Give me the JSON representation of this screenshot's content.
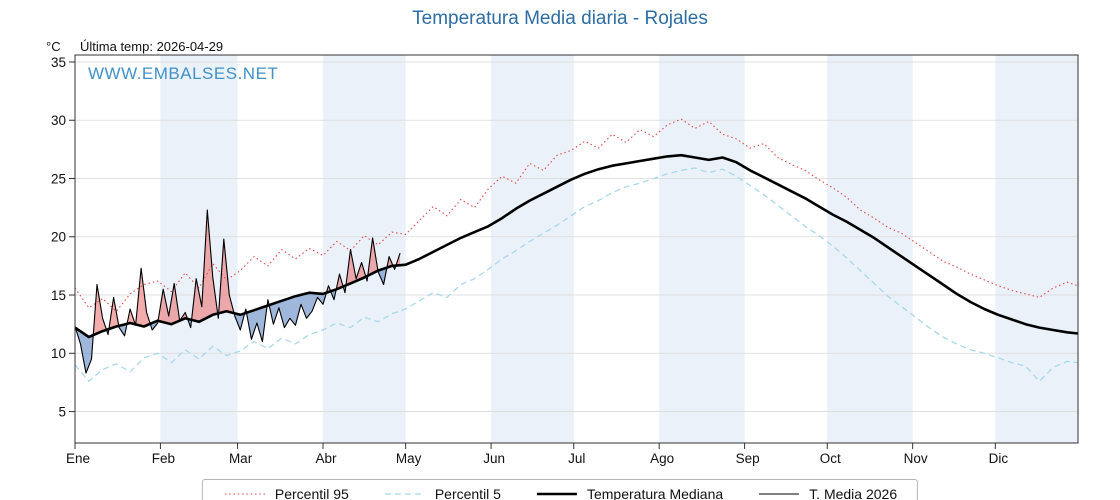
{
  "page": {
    "title": "Temperatura Media diaria - Rojales",
    "units_label": "°C",
    "last_temp_label": "Última temp: 2026-04-29",
    "watermark": "WWW.EMBALSES.NET"
  },
  "colors": {
    "title": "#2e6da4",
    "watermark": "#4191c9",
    "band": "#eaf1f8",
    "grid": "#d9d9d9",
    "axis": "#333333",
    "fill_above": "rgba(235,105,105,0.55)",
    "fill_below": "rgba(95,135,195,0.60)"
  },
  "chart_data": {
    "type": "line",
    "title": "Temperatura Media diaria - Rojales",
    "subtitle": "Última temp: 2026-04-29",
    "xlabel": "",
    "ylabel": "°C",
    "grid": true,
    "legend_position": "bottom",
    "x_axis": {
      "tick_labels": [
        "Ene",
        "Feb",
        "Mar",
        "Abr",
        "May",
        "Jun",
        "Jul",
        "Ago",
        "Sep",
        "Oct",
        "Nov",
        "Dic"
      ],
      "month_start_days": [
        1,
        32,
        60,
        91,
        121,
        152,
        182,
        213,
        244,
        274,
        305,
        335
      ],
      "range_days": [
        1,
        365
      ]
    },
    "y_axis": {
      "ticks": [
        5,
        10,
        15,
        20,
        25,
        30,
        35
      ],
      "units": "°C",
      "display_range": [
        2.3,
        35.6
      ]
    },
    "legend": [
      {
        "label": "Percentil 95",
        "color": "#e04848",
        "style": "dotted",
        "width": 1.1
      },
      {
        "label": "Percentil 5",
        "color": "#a8d8ea",
        "style": "dashed",
        "width": 1.3
      },
      {
        "label": "Temperatura Mediana",
        "color": "#000000",
        "style": "solid",
        "width": 2.6
      },
      {
        "label": "T. Media 2026",
        "color": "#000000",
        "style": "solid",
        "width": 1.1
      }
    ],
    "series": [
      {
        "name": "Percentil 95",
        "color": "#e04848",
        "style": "dotted",
        "width": 1.1,
        "x": [
          1,
          6,
          11,
          16,
          21,
          26,
          31,
          36,
          41,
          46,
          51,
          56,
          61,
          66,
          71,
          76,
          81,
          86,
          91,
          96,
          101,
          106,
          111,
          116,
          121,
          126,
          131,
          136,
          141,
          146,
          151,
          156,
          161,
          166,
          171,
          176,
          181,
          186,
          191,
          196,
          201,
          206,
          211,
          216,
          221,
          226,
          231,
          236,
          241,
          246,
          251,
          256,
          261,
          266,
          271,
          276,
          281,
          286,
          291,
          296,
          301,
          306,
          311,
          316,
          321,
          326,
          331,
          336,
          341,
          346,
          351,
          356,
          361,
          365
        ],
        "values": [
          15.6,
          13.9,
          14.7,
          13.6,
          15.1,
          15.9,
          16.2,
          15.3,
          16.9,
          15.6,
          17.7,
          16.3,
          17.1,
          18.3,
          17.5,
          18.9,
          18.1,
          19.0,
          18.4,
          19.6,
          18.8,
          20.1,
          19.3,
          20.4,
          20.2,
          21.4,
          22.6,
          21.8,
          23.2,
          22.5,
          24.1,
          25.2,
          24.6,
          26.3,
          25.7,
          27.0,
          27.4,
          28.2,
          27.6,
          28.8,
          28.1,
          29.2,
          28.6,
          29.6,
          30.1,
          29.3,
          29.9,
          28.8,
          28.4,
          27.6,
          28.0,
          26.8,
          26.2,
          25.7,
          24.9,
          24.2,
          23.4,
          22.3,
          21.6,
          20.8,
          20.3,
          19.5,
          18.7,
          17.9,
          17.4,
          16.8,
          16.3,
          15.8,
          15.4,
          15.1,
          14.8,
          15.6,
          16.1,
          15.8
        ]
      },
      {
        "name": "Percentil 5",
        "color": "#a8d8ea",
        "style": "dashed",
        "width": 1.3,
        "x": [
          1,
          6,
          11,
          16,
          21,
          26,
          31,
          36,
          41,
          46,
          51,
          56,
          61,
          66,
          71,
          76,
          81,
          86,
          91,
          96,
          101,
          106,
          111,
          116,
          121,
          126,
          131,
          136,
          141,
          146,
          151,
          156,
          161,
          166,
          171,
          176,
          181,
          186,
          191,
          196,
          201,
          206,
          211,
          216,
          221,
          226,
          231,
          236,
          241,
          246,
          251,
          256,
          261,
          266,
          271,
          276,
          281,
          286,
          291,
          296,
          301,
          306,
          311,
          316,
          321,
          326,
          331,
          336,
          341,
          346,
          351,
          356,
          361,
          365
        ],
        "values": [
          9.0,
          7.6,
          8.6,
          9.1,
          8.4,
          9.6,
          10.0,
          9.2,
          10.3,
          9.5,
          10.6,
          9.8,
          10.2,
          11.0,
          10.4,
          11.3,
          10.8,
          11.6,
          12.0,
          12.6,
          12.2,
          13.1,
          12.7,
          13.4,
          13.8,
          14.5,
          15.2,
          14.8,
          15.9,
          16.4,
          17.2,
          18.1,
          18.8,
          19.6,
          20.3,
          21.0,
          21.8,
          22.6,
          23.1,
          23.8,
          24.3,
          24.6,
          25.0,
          25.4,
          25.7,
          25.9,
          25.5,
          25.8,
          25.2,
          24.4,
          23.6,
          22.7,
          21.8,
          20.9,
          20.1,
          19.2,
          18.2,
          17.1,
          16.0,
          14.9,
          14.0,
          13.1,
          12.2,
          11.4,
          10.8,
          10.3,
          10.0,
          9.6,
          9.2,
          8.9,
          7.6,
          8.8,
          9.3,
          9.2
        ]
      },
      {
        "name": "Temperatura Mediana",
        "color": "#000000",
        "style": "solid",
        "width": 2.6,
        "x": [
          1,
          6,
          11,
          16,
          21,
          26,
          31,
          36,
          41,
          46,
          51,
          56,
          61,
          66,
          71,
          76,
          81,
          86,
          91,
          96,
          101,
          106,
          111,
          116,
          121,
          126,
          131,
          136,
          141,
          146,
          151,
          156,
          161,
          166,
          171,
          176,
          181,
          186,
          191,
          196,
          201,
          206,
          211,
          216,
          221,
          226,
          231,
          236,
          241,
          246,
          251,
          256,
          261,
          266,
          271,
          276,
          281,
          286,
          291,
          296,
          301,
          306,
          311,
          316,
          321,
          326,
          331,
          336,
          341,
          346,
          351,
          356,
          361,
          365
        ],
        "values": [
          12.2,
          11.4,
          11.9,
          12.3,
          12.6,
          12.3,
          12.8,
          12.5,
          13.0,
          12.7,
          13.3,
          13.6,
          13.3,
          13.7,
          14.1,
          14.5,
          14.9,
          15.2,
          15.1,
          15.5,
          16.0,
          16.5,
          17.1,
          17.5,
          17.6,
          18.1,
          18.7,
          19.3,
          19.9,
          20.4,
          20.9,
          21.6,
          22.4,
          23.1,
          23.7,
          24.3,
          24.9,
          25.4,
          25.8,
          26.1,
          26.3,
          26.5,
          26.7,
          26.9,
          27.0,
          26.8,
          26.6,
          26.8,
          26.4,
          25.7,
          25.1,
          24.5,
          23.9,
          23.3,
          22.6,
          21.9,
          21.3,
          20.6,
          19.9,
          19.1,
          18.3,
          17.5,
          16.7,
          15.9,
          15.1,
          14.4,
          13.8,
          13.3,
          12.9,
          12.5,
          12.2,
          12.0,
          11.8,
          11.7
        ]
      },
      {
        "name": "T. Media 2026",
        "color": "#000000",
        "style": "solid",
        "width": 1.1,
        "fill_vs": "Temperatura Mediana",
        "last_date": "2026-04-29",
        "x": [
          1,
          3,
          5,
          7,
          9,
          11,
          13,
          15,
          17,
          19,
          21,
          23,
          25,
          27,
          29,
          31,
          33,
          35,
          37,
          39,
          41,
          43,
          45,
          47,
          49,
          51,
          53,
          55,
          57,
          59,
          61,
          63,
          65,
          67,
          69,
          71,
          73,
          75,
          77,
          79,
          81,
          83,
          85,
          87,
          89,
          91,
          93,
          95,
          97,
          99,
          101,
          103,
          105,
          107,
          109,
          111,
          113,
          115,
          117,
          119
        ],
        "values": [
          12.3,
          10.8,
          8.3,
          9.5,
          15.9,
          13.0,
          11.6,
          14.8,
          12.2,
          11.5,
          13.8,
          12.4,
          17.3,
          13.5,
          12.0,
          12.6,
          15.5,
          13.2,
          16.0,
          12.8,
          13.5,
          12.2,
          16.4,
          14.0,
          22.3,
          16.5,
          13.0,
          19.8,
          15.0,
          13.2,
          12.0,
          13.8,
          11.2,
          12.6,
          11.0,
          14.6,
          12.5,
          13.9,
          12.2,
          13.0,
          12.4,
          14.2,
          13.0,
          13.6,
          14.8,
          14.2,
          15.8,
          14.6,
          16.8,
          15.2,
          18.9,
          16.4,
          17.8,
          16.2,
          19.9,
          17.0,
          15.9,
          18.3,
          17.2,
          18.6
        ]
      }
    ]
  }
}
